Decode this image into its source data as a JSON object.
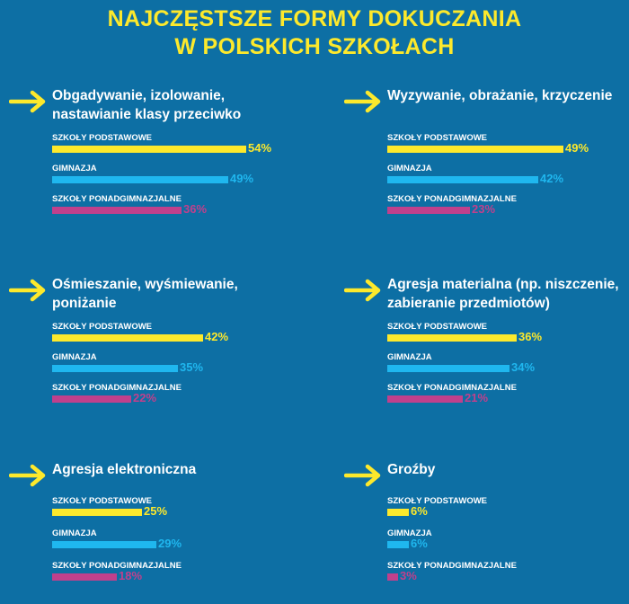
{
  "title_line1": "NAJCZĘSTSZE FORMY DOKUCZANIA",
  "title_line2": "W POLSKICH SZKOŁACH",
  "colors": {
    "background": "#0d6fa4",
    "title": "#fde92c",
    "arrow": "#fde92c",
    "szkoly_podstawowe": "#fde92c",
    "gimnazja": "#1fb7ef",
    "szkoly_ponadgimnazjalne": "#c0408c"
  },
  "chart_data": {
    "type": "bar",
    "title": "NAJCZĘSTSZE FORMY DOKUCZANIA W POLSKICH SZKOŁACH",
    "series_names": [
      "SZKOŁY PODSTAWOWE",
      "GIMNAZJA",
      "SZKOŁY PONADGIMNAZJALNE"
    ],
    "unit": "%",
    "panels": [
      {
        "title_lines": [
          "Obgadywanie, izolowanie,",
          "nastawianie klasy przeciwko"
        ],
        "rows": [
          {
            "label": "SZKOŁY PODSTAWOWE",
            "value": 54,
            "value_text": "54%"
          },
          {
            "label": "GIMNAZJA",
            "value": 49,
            "value_text": "49%"
          },
          {
            "label": "SZKOŁY PONADGIMNAZJALNE",
            "value": 36,
            "value_text": "36%"
          }
        ]
      },
      {
        "title_lines": [
          "Wyzywanie, obrażanie, krzyczenie"
        ],
        "rows": [
          {
            "label": "SZKOŁY PODSTAWOWE",
            "value": 49,
            "value_text": "49%"
          },
          {
            "label": "GIMNAZJA",
            "value": 42,
            "value_text": "42%"
          },
          {
            "label": "SZKOŁY PONADGIMNAZJALNE",
            "value": 23,
            "value_text": "23%"
          }
        ]
      },
      {
        "title_lines": [
          "Ośmieszanie, wyśmiewanie,",
          "poniżanie"
        ],
        "rows": [
          {
            "label": "SZKOŁY PODSTAWOWE",
            "value": 42,
            "value_text": "42%"
          },
          {
            "label": "GIMNAZJA",
            "value": 35,
            "value_text": "35%"
          },
          {
            "label": "SZKOŁY PONADGIMNAZJALNE",
            "value": 22,
            "value_text": "22%"
          }
        ]
      },
      {
        "title_lines": [
          "Agresja materialna (np. niszczenie,",
          "zabieranie przedmiotów)"
        ],
        "rows": [
          {
            "label": "SZKOŁY PODSTAWOWE",
            "value": 36,
            "value_text": "36%"
          },
          {
            "label": "GIMNAZJA",
            "value": 34,
            "value_text": "34%"
          },
          {
            "label": "SZKOŁY PONADGIMNAZJALNE",
            "value": 21,
            "value_text": "21%"
          }
        ]
      },
      {
        "title_lines": [
          "Agresja elektroniczna"
        ],
        "rows": [
          {
            "label": "SZKOŁY PODSTAWOWE",
            "value": 25,
            "value_text": "25%"
          },
          {
            "label": "GIMNAZJA",
            "value": 29,
            "value_text": "29%"
          },
          {
            "label": "SZKOŁY PONADGIMNAZJALNE",
            "value": 18,
            "value_text": "18%"
          }
        ]
      },
      {
        "title_lines": [
          "Groźby"
        ],
        "rows": [
          {
            "label": "SZKOŁY PODSTAWOWE",
            "value": 6,
            "value_text": "6%"
          },
          {
            "label": "GIMNAZJA",
            "value": 6,
            "value_text": "6%"
          },
          {
            "label": "SZKOŁY PONADGIMNAZJALNE",
            "value": 3,
            "value_text": "3%"
          }
        ]
      }
    ]
  }
}
